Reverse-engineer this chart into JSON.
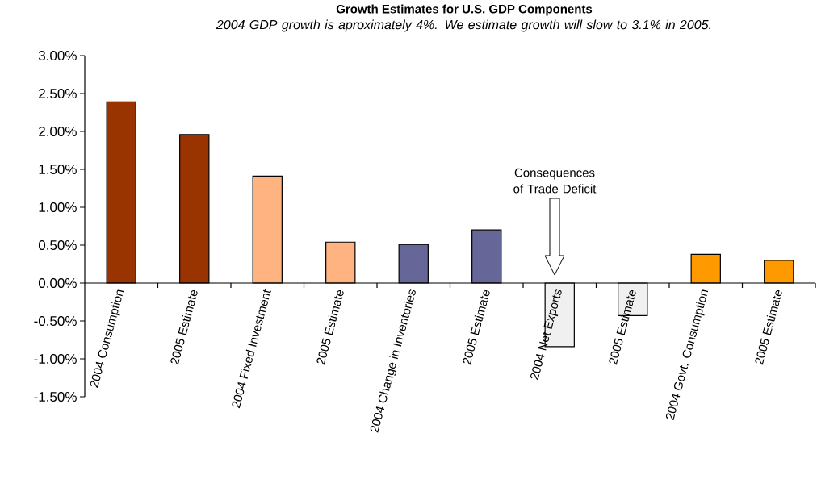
{
  "chart_data": {
    "type": "bar",
    "title": "Growth Estimates for U.S. GDP Components",
    "subtitle": "2004 GDP growth is aproximately 4%.  We estimate growth will slow to 3.1% in 2005.",
    "categories": [
      "2004 Consumption",
      "2005 Estimate",
      "2004 Fixed Investment",
      "2005 Estimate",
      "2004 Change in Inventories",
      "2005 Estimate",
      "2004 Net Exports",
      "2005 Estimate",
      "2004 Govt. Consumption",
      "2005 Estimate"
    ],
    "values": [
      2.39,
      1.96,
      1.41,
      0.54,
      0.51,
      0.7,
      -0.84,
      -0.43,
      0.38,
      0.3
    ],
    "colors": [
      "#993300",
      "#993300",
      "#ffb380",
      "#ffb380",
      "#666699",
      "#666699",
      "#f0f0f0",
      "#f0f0f0",
      "#ff9900",
      "#ff9900"
    ],
    "ylim": [
      -1.5,
      3.0
    ],
    "yticks": [
      {
        "value": -1.5,
        "label": "-1.50%"
      },
      {
        "value": -1.0,
        "label": "-1.00%"
      },
      {
        "value": -0.5,
        "label": "-0.50%"
      },
      {
        "value": 0.0,
        "label": "0.00%"
      },
      {
        "value": 0.5,
        "label": "0.50%"
      },
      {
        "value": 1.0,
        "label": "1.00%"
      },
      {
        "value": 1.5,
        "label": "1.50%"
      },
      {
        "value": 2.0,
        "label": "2.00%"
      },
      {
        "value": 2.5,
        "label": "2.50%"
      },
      {
        "value": 3.0,
        "label": "3.00%"
      }
    ],
    "annotations": [
      "Consequences of Trade Deficit"
    ],
    "grid": false
  }
}
